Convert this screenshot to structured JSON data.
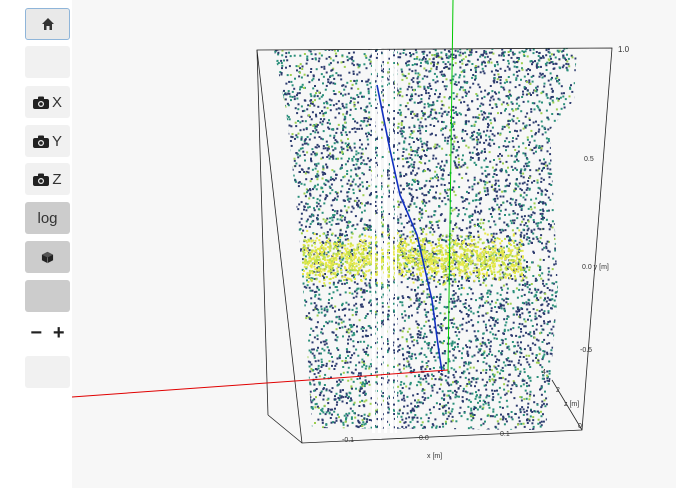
{
  "toolbar": {
    "home_icon": "home-icon",
    "camera_x_label": "X",
    "camera_y_label": "Y",
    "camera_z_label": "Z",
    "log_label": "log",
    "cube_icon": "cube-icon",
    "zoom_out_label": "−",
    "zoom_in_label": "+"
  },
  "plot": {
    "y_ticks": [
      "0.5",
      "0.0",
      "-0.5"
    ],
    "y_axis_label": "0.0 y [m]",
    "x_ticks": [
      "-0.1",
      "0.0",
      "0.1"
    ],
    "x_axis_label": "x [m]",
    "z_ticks": [
      "0",
      "2",
      "4"
    ],
    "z_axis_label": "z [m]",
    "top_right_tick": "1.0",
    "colors": {
      "x_axis": "#e00000",
      "y_axis": "#00c800",
      "point_low": "#2c3b6e",
      "point_mid": "#2a8f7a",
      "point_high": "#e8e84a"
    }
  }
}
